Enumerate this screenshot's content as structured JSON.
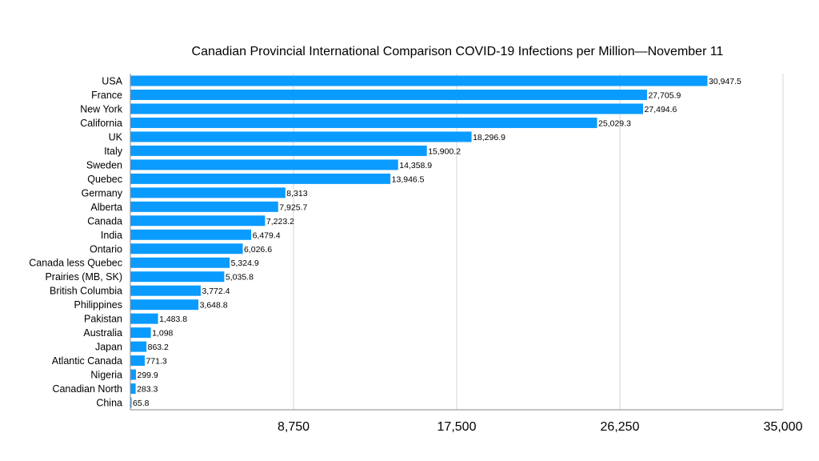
{
  "chart_data": {
    "type": "bar",
    "orientation": "horizontal",
    "title": "Canadian Provincial International Comparison COVID-19 Infections per Million—November 11",
    "xlabel": "",
    "ylabel": "",
    "xlim": [
      0,
      35000
    ],
    "xticks": [
      "8,750",
      "17,500",
      "26,250",
      "35,000"
    ],
    "xtick_values": [
      8750,
      17500,
      26250,
      35000
    ],
    "grid": "vertical",
    "bar_color": "#0a9bff",
    "categories": [
      "USA",
      "France",
      "New York",
      "California",
      "UK",
      "Italy",
      "Sweden",
      "Quebec",
      "Germany",
      "Alberta",
      "Canada",
      "India",
      "Ontario",
      "Canada less Quebec",
      "Prairies (MB, SK)",
      "British Columbia",
      "Philippines",
      "Pakistan",
      "Australia",
      "Japan",
      "Atlantic Canada",
      "Nigeria",
      "Canadian North",
      "China"
    ],
    "values": [
      30947.5,
      27705.9,
      27494.6,
      25029.3,
      18296.9,
      15900.2,
      14358.9,
      13946.5,
      8313,
      7925.7,
      7223.2,
      6479.4,
      6026.6,
      5324.9,
      5035.8,
      3772.4,
      3648.8,
      1483.8,
      1098,
      863.2,
      771.3,
      299.9,
      283.3,
      65.8
    ],
    "labels": [
      "30,947.5",
      "27,705.9",
      "27,494.6",
      "25,029.3",
      "18,296.9",
      "15,900.2",
      "14,358.9",
      "13,946.5",
      "8,313",
      "7,925.7",
      "7,223.2",
      "6,479.4",
      "6,026.6",
      "5,324.9",
      "5,035.8",
      "3,772.4",
      "3,648.8",
      "1,483.8",
      "1,098",
      "863.2",
      "771.3",
      "299.9",
      "283.3",
      "65.8"
    ]
  }
}
